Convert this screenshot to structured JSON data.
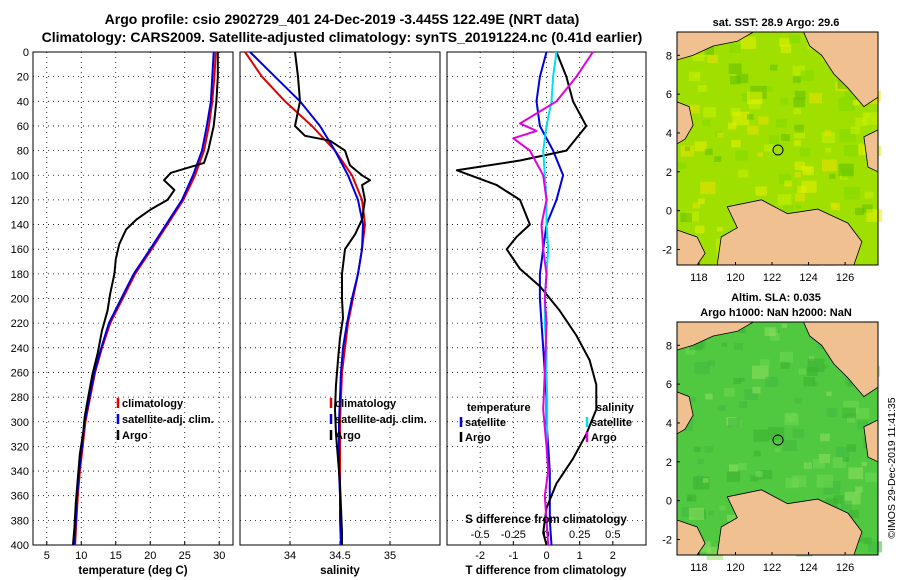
{
  "titles": {
    "line1": "Argo profile: csio 2902729_401 24-Dec-2019 -3.445S 122.49E (NRT data)",
    "line2": "Climatology: CARS2009. Satellite-adjusted climatology: synTS_20191224.nc (0.41d earlier)"
  },
  "credit": "©IMOS 29-Dec-2019 11:41:35",
  "chart_data": [
    {
      "type": "line",
      "panel": "temperature",
      "xlabel": "temperature (deg C)",
      "ylabel": "depth",
      "xlim": [
        3,
        32
      ],
      "ylim": [
        400,
        0
      ],
      "xticks": [
        5,
        10,
        15,
        20,
        25,
        30
      ],
      "yticks": [
        0,
        20,
        40,
        60,
        80,
        100,
        120,
        140,
        160,
        180,
        200,
        220,
        240,
        260,
        280,
        300,
        320,
        340,
        360,
        380,
        400
      ],
      "legend": [
        "climatology",
        "satellite-adj. clim.",
        "Argo"
      ],
      "series": [
        {
          "name": "climatology",
          "color": "#e00000",
          "points": [
            [
              29.5,
              0
            ],
            [
              29.3,
              20
            ],
            [
              29.0,
              40
            ],
            [
              28.5,
              60
            ],
            [
              27.8,
              80
            ],
            [
              26.5,
              100
            ],
            [
              24.8,
              120
            ],
            [
              22.5,
              140
            ],
            [
              20.2,
              160
            ],
            [
              17.8,
              180
            ],
            [
              16.0,
              200
            ],
            [
              14.2,
              220
            ],
            [
              13.0,
              240
            ],
            [
              12.0,
              260
            ],
            [
              11.3,
              280
            ],
            [
              10.6,
              300
            ],
            [
              10.2,
              320
            ],
            [
              9.8,
              340
            ],
            [
              9.5,
              360
            ],
            [
              9.3,
              380
            ],
            [
              9.1,
              400
            ]
          ]
        },
        {
          "name": "satellite-adj. clim.",
          "color": "#0000e0",
          "points": [
            [
              29.2,
              0
            ],
            [
              29.0,
              20
            ],
            [
              28.8,
              40
            ],
            [
              28.2,
              60
            ],
            [
              27.5,
              80
            ],
            [
              26.2,
              100
            ],
            [
              24.6,
              120
            ],
            [
              22.3,
              140
            ],
            [
              20.0,
              160
            ],
            [
              17.6,
              180
            ],
            [
              15.8,
              200
            ],
            [
              14.0,
              220
            ],
            [
              12.9,
              240
            ],
            [
              11.9,
              260
            ],
            [
              11.2,
              280
            ],
            [
              10.5,
              300
            ],
            [
              10.1,
              320
            ],
            [
              9.7,
              340
            ],
            [
              9.4,
              360
            ],
            [
              9.2,
              380
            ],
            [
              9.0,
              400
            ]
          ]
        },
        {
          "name": "Argo",
          "color": "#000000",
          "points": [
            [
              29.8,
              0
            ],
            [
              29.8,
              20
            ],
            [
              29.6,
              40
            ],
            [
              29.2,
              60
            ],
            [
              28.4,
              80
            ],
            [
              27.8,
              90
            ],
            [
              23.0,
              98
            ],
            [
              22.0,
              104
            ],
            [
              23.5,
              112
            ],
            [
              22.5,
              120
            ],
            [
              20.0,
              128
            ],
            [
              18.0,
              136
            ],
            [
              16.5,
              144
            ],
            [
              15.5,
              156
            ],
            [
              15.0,
              168
            ],
            [
              14.8,
              180
            ],
            [
              14.2,
              196
            ],
            [
              13.8,
              210
            ],
            [
              13.0,
              226
            ],
            [
              12.4,
              244
            ],
            [
              11.6,
              262
            ],
            [
              11.0,
              280
            ],
            [
              10.5,
              296
            ],
            [
              10.3,
              308
            ],
            [
              9.8,
              326
            ],
            [
              9.5,
              346
            ],
            [
              9.2,
              366
            ],
            [
              9.0,
              386
            ],
            [
              8.8,
              400
            ]
          ]
        }
      ]
    },
    {
      "type": "line",
      "panel": "salinity",
      "xlabel": "salinity",
      "xlim": [
        33.5,
        35.5
      ],
      "ylim": [
        400,
        0
      ],
      "xticks": [
        34,
        34.5,
        35
      ],
      "legend": [
        "climatology",
        "satellite-adj. clim.",
        "Argo"
      ],
      "series": [
        {
          "name": "climatology",
          "color": "#e00000",
          "points": [
            [
              33.55,
              0
            ],
            [
              33.72,
              20
            ],
            [
              33.95,
              40
            ],
            [
              34.22,
              60
            ],
            [
              34.45,
              80
            ],
            [
              34.62,
              100
            ],
            [
              34.72,
              120
            ],
            [
              34.75,
              140
            ],
            [
              34.72,
              160
            ],
            [
              34.68,
              180
            ],
            [
              34.63,
              200
            ],
            [
              34.58,
              220
            ],
            [
              34.55,
              240
            ],
            [
              34.52,
              260
            ],
            [
              34.51,
              280
            ],
            [
              34.5,
              300
            ],
            [
              34.5,
              320
            ],
            [
              34.5,
              340
            ],
            [
              34.5,
              360
            ],
            [
              34.51,
              380
            ],
            [
              34.52,
              400
            ]
          ]
        },
        {
          "name": "satellite-adj. clim.",
          "color": "#0000e0",
          "points": [
            [
              33.6,
              0
            ],
            [
              33.85,
              20
            ],
            [
              34.1,
              40
            ],
            [
              34.3,
              60
            ],
            [
              34.45,
              80
            ],
            [
              34.58,
              100
            ],
            [
              34.68,
              120
            ],
            [
              34.73,
              140
            ],
            [
              34.72,
              160
            ],
            [
              34.68,
              180
            ],
            [
              34.62,
              200
            ],
            [
              34.57,
              220
            ],
            [
              34.53,
              240
            ],
            [
              34.51,
              260
            ],
            [
              34.5,
              280
            ],
            [
              34.49,
              300
            ],
            [
              34.49,
              320
            ],
            [
              34.49,
              340
            ],
            [
              34.5,
              360
            ],
            [
              34.5,
              380
            ],
            [
              34.51,
              400
            ]
          ]
        },
        {
          "name": "Argo",
          "color": "#000000",
          "points": [
            [
              34.05,
              0
            ],
            [
              34.08,
              20
            ],
            [
              34.1,
              40
            ],
            [
              34.05,
              60
            ],
            [
              34.15,
              68
            ],
            [
              34.4,
              72
            ],
            [
              34.55,
              80
            ],
            [
              34.6,
              92
            ],
            [
              34.72,
              100
            ],
            [
              34.8,
              104
            ],
            [
              34.72,
              108
            ],
            [
              34.75,
              120
            ],
            [
              34.72,
              136
            ],
            [
              34.65,
              148
            ],
            [
              34.55,
              160
            ],
            [
              34.52,
              180
            ],
            [
              34.52,
              200
            ],
            [
              34.53,
              216
            ],
            [
              34.5,
              232
            ],
            [
              34.48,
              250
            ],
            [
              34.46,
              270
            ],
            [
              34.45,
              290
            ],
            [
              34.46,
              310
            ],
            [
              34.48,
              330
            ],
            [
              34.5,
              350
            ],
            [
              34.51,
              370
            ],
            [
              34.52,
              390
            ],
            [
              34.52,
              400
            ]
          ]
        }
      ]
    },
    {
      "type": "line",
      "panel": "difference",
      "xlabel": "T difference from climatology",
      "xlabel_top": "S difference from climatology",
      "xlim": [
        -3.0,
        3.0
      ],
      "xticks": [
        -2,
        -1,
        0,
        1,
        2
      ],
      "s_ticks": [
        "-0.5",
        "-0.25",
        "0",
        "0.25",
        "0.5"
      ],
      "ylim": [
        400,
        0
      ],
      "legend_headers": [
        "temperature",
        "salinity"
      ],
      "legend": [
        "satellite",
        "Argo",
        "satellite",
        "Argo"
      ],
      "series": [
        {
          "name": "satellite (temperature)",
          "color": "#0000e0",
          "points": [
            [
              0.0,
              0
            ],
            [
              -0.2,
              20
            ],
            [
              -0.3,
              40
            ],
            [
              -0.2,
              60
            ],
            [
              0.2,
              80
            ],
            [
              0.5,
              100
            ],
            [
              0.3,
              120
            ],
            [
              0.0,
              140
            ],
            [
              -0.1,
              160
            ],
            [
              -0.2,
              180
            ],
            [
              -0.2,
              200
            ],
            [
              -0.15,
              220
            ],
            [
              -0.1,
              240
            ],
            [
              -0.05,
              260
            ],
            [
              0.0,
              280
            ],
            [
              0.0,
              300
            ],
            [
              0.05,
              320
            ],
            [
              0.1,
              340
            ],
            [
              0.1,
              360
            ],
            [
              0.1,
              380
            ],
            [
              0.15,
              400
            ]
          ]
        },
        {
          "name": "Argo (temperature)",
          "color": "#000000",
          "points": [
            [
              0.3,
              0
            ],
            [
              0.6,
              20
            ],
            [
              0.8,
              40
            ],
            [
              1.2,
              60
            ],
            [
              0.6,
              80
            ],
            [
              -0.8,
              88
            ],
            [
              -2.7,
              96
            ],
            [
              -1.5,
              108
            ],
            [
              -0.8,
              120
            ],
            [
              -0.5,
              140
            ],
            [
              -0.9,
              150
            ],
            [
              -1.2,
              160
            ],
            [
              -0.8,
              176
            ],
            [
              -0.2,
              190
            ],
            [
              0.4,
              210
            ],
            [
              0.9,
              230
            ],
            [
              1.3,
              250
            ],
            [
              1.5,
              270
            ],
            [
              1.5,
              290
            ],
            [
              1.2,
              310
            ],
            [
              0.8,
              330
            ],
            [
              0.3,
              350
            ],
            [
              0.0,
              370
            ],
            [
              -0.1,
              390
            ],
            [
              0.0,
              400
            ]
          ]
        },
        {
          "name": "satellite (salinity)",
          "color": "#00e0f0",
          "points": [
            [
              0.3,
              0
            ],
            [
              0.2,
              20
            ],
            [
              0.15,
              40
            ],
            [
              0.0,
              60
            ],
            [
              -0.1,
              80
            ],
            [
              -0.05,
              100
            ],
            [
              0.0,
              120
            ],
            [
              0.0,
              140
            ],
            [
              0.05,
              160
            ],
            [
              0.0,
              180
            ],
            [
              -0.05,
              200
            ],
            [
              -0.05,
              220
            ],
            [
              0.0,
              240
            ],
            [
              0.0,
              260
            ],
            [
              0.02,
              280
            ],
            [
              0.02,
              300
            ],
            [
              0.0,
              320
            ]
          ]
        },
        {
          "name": "Argo (salinity)",
          "color": "#e000e0",
          "points": [
            [
              1.4,
              0
            ],
            [
              0.9,
              20
            ],
            [
              0.3,
              40
            ],
            [
              -0.8,
              58
            ],
            [
              -0.3,
              64
            ],
            [
              -1.0,
              70
            ],
            [
              -0.5,
              80
            ],
            [
              -0.1,
              100
            ],
            [
              0.0,
              120
            ],
            [
              -0.15,
              140
            ],
            [
              -0.1,
              160
            ],
            [
              0.0,
              180
            ],
            [
              -0.05,
              200
            ],
            [
              0.0,
              220
            ],
            [
              -0.05,
              260
            ],
            [
              -0.1,
              290
            ],
            [
              0.0,
              320
            ],
            [
              0.05,
              340
            ],
            [
              -0.05,
              360
            ],
            [
              0.0,
              380
            ],
            [
              0.05,
              400
            ]
          ]
        }
      ]
    }
  ],
  "maps": {
    "sst": {
      "title": "sat. SST: 28.9 Argo: 29.6",
      "xticks": [
        "118",
        "120",
        "122",
        "124",
        "126"
      ],
      "yticks": [
        "8",
        "6",
        "4",
        "2",
        "0",
        "-2"
      ],
      "colors": {
        "land": "#f0c090",
        "water": "#a0e000"
      }
    },
    "sla": {
      "title_line1": "Altim. SLA: 0.035",
      "title_line2": "Argo h1000: NaN h2000: NaN",
      "xticks": [
        "118",
        "120",
        "122",
        "124",
        "126"
      ],
      "yticks": [
        "8",
        "6",
        "4",
        "2",
        "0",
        "-2"
      ],
      "colors": {
        "land": "#f0c090",
        "water": "#50c840"
      }
    }
  }
}
